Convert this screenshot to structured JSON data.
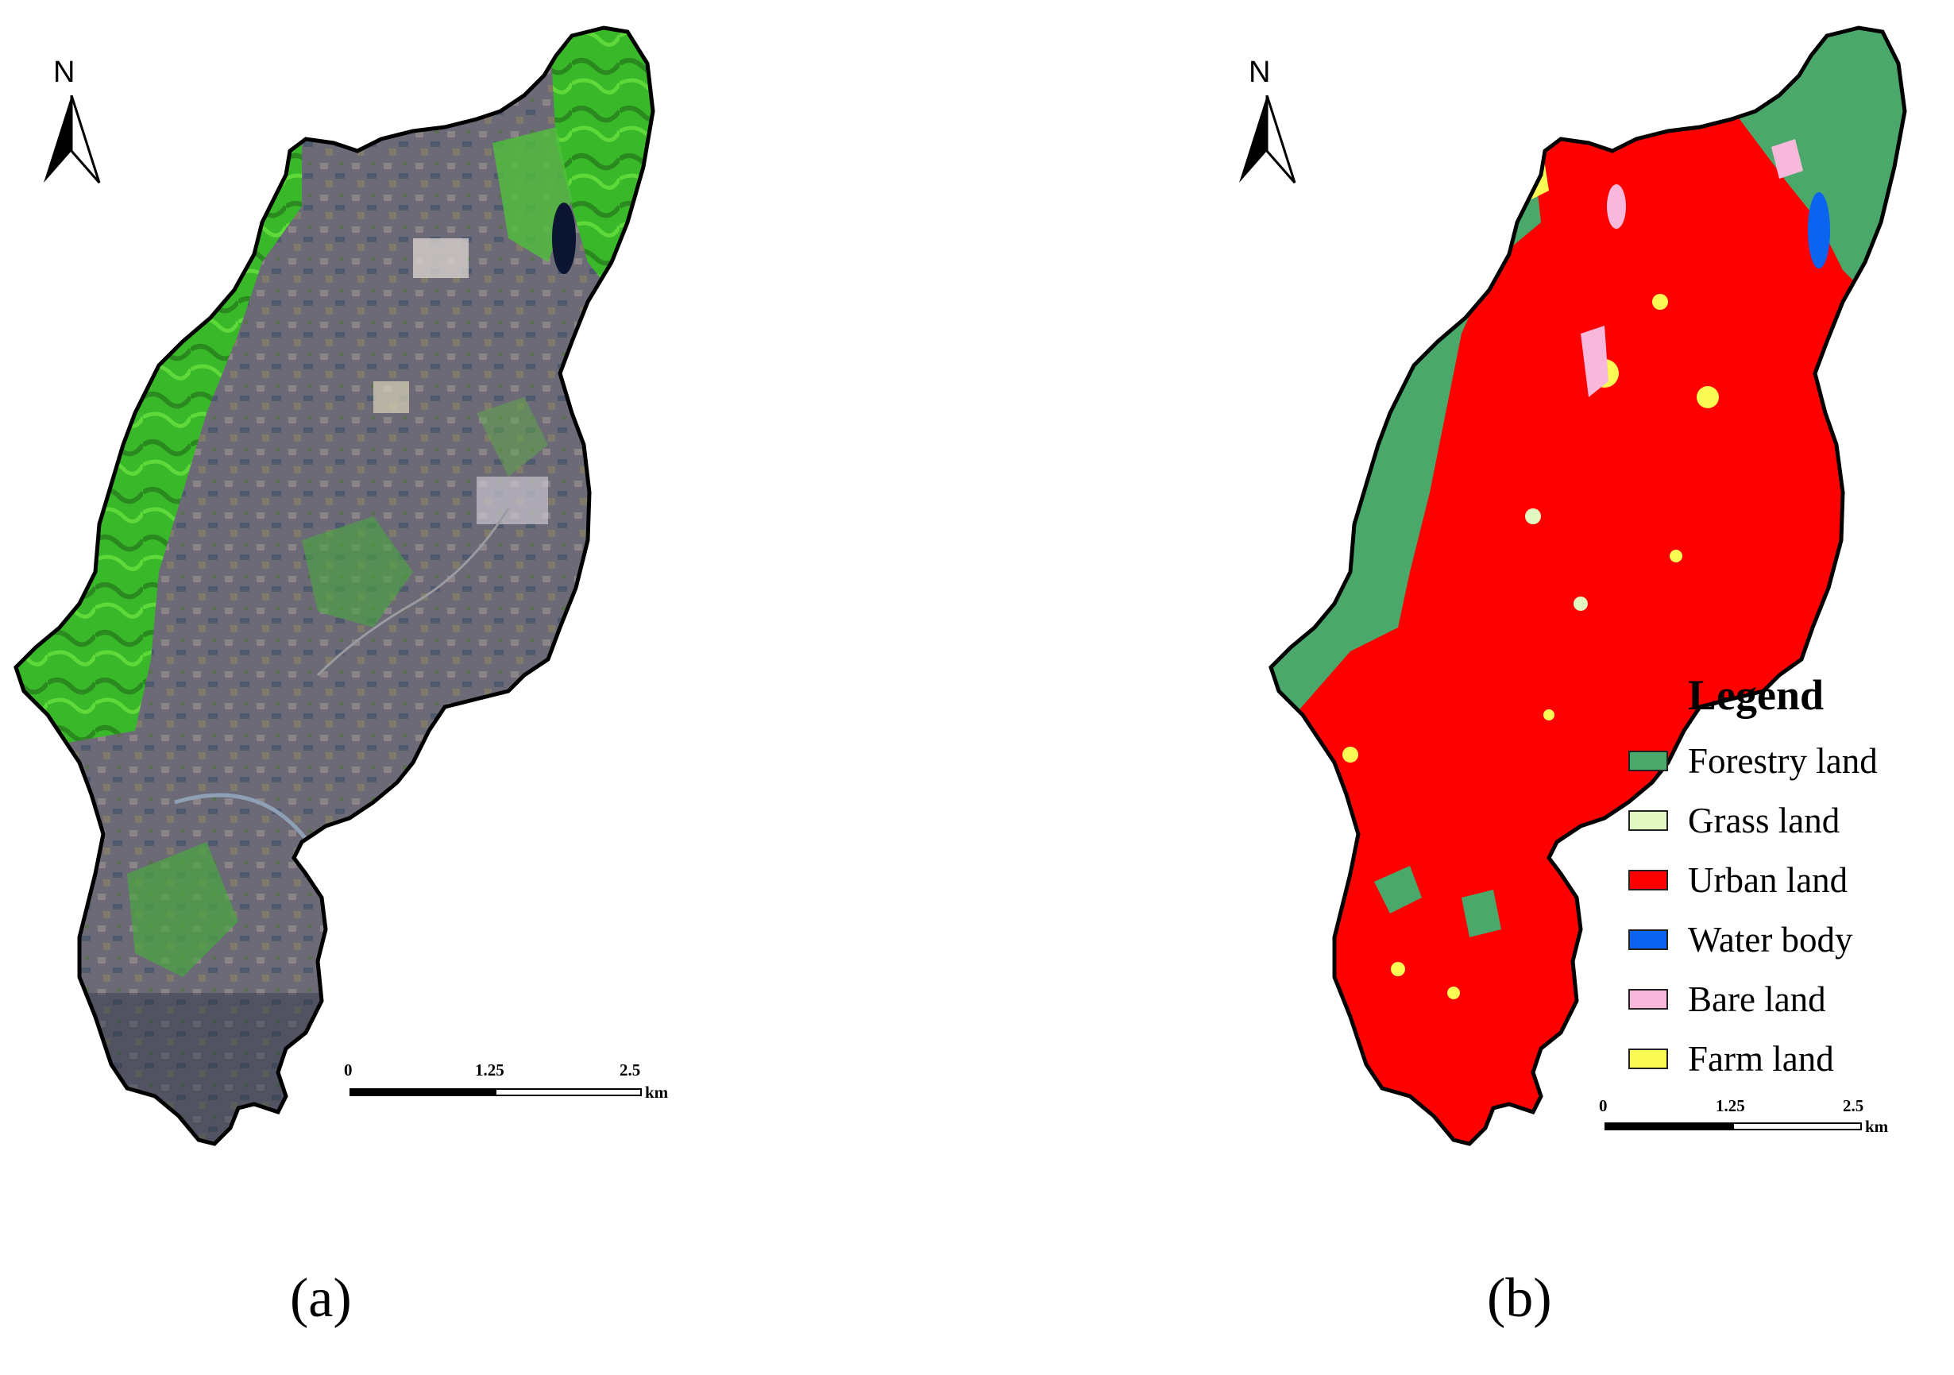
{
  "panel_a": {
    "caption": "(a)",
    "north_label": "N",
    "scale": {
      "ticks": [
        "0",
        "1.25",
        "2.5"
      ],
      "unit": "km"
    }
  },
  "panel_b": {
    "caption": "(b)",
    "north_label": "N",
    "scale": {
      "ticks": [
        "0",
        "1.25",
        "2.5"
      ],
      "unit": "km"
    },
    "legend": {
      "title": "Legend",
      "items": [
        {
          "label": "Forestry land",
          "color": "#4aa86a"
        },
        {
          "label": "Grass land",
          "color": "#e2f7c2"
        },
        {
          "label": "Urban land",
          "color": "#fe0000"
        },
        {
          "label": "Water body",
          "color": "#0a64f0"
        },
        {
          "label": "Bare land",
          "color": "#f7b8dc"
        },
        {
          "label": "Farm land",
          "color": "#fafa55"
        }
      ]
    }
  },
  "colors": {
    "vegetation": "#3fbf2a",
    "urban_satellite": "#6f6773",
    "boundary": "#000000"
  }
}
